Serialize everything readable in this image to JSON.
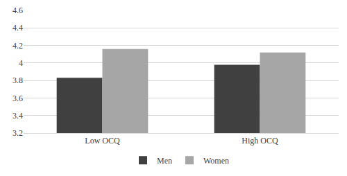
{
  "chart_data": {
    "type": "bar",
    "categories": [
      "Low OCQ",
      "High OCQ"
    ],
    "series": [
      {
        "name": "Men",
        "color": "#404040",
        "values": [
          3.83,
          3.98
        ]
      },
      {
        "name": "Women",
        "color": "#a6a6a6",
        "values": [
          4.16,
          4.12
        ]
      }
    ],
    "ylim": [
      3.2,
      4.6
    ],
    "yticks": [
      3.2,
      3.4,
      3.6,
      3.8,
      4,
      4.2,
      4.4,
      4.6
    ],
    "grid": true,
    "legend": "bottom"
  }
}
